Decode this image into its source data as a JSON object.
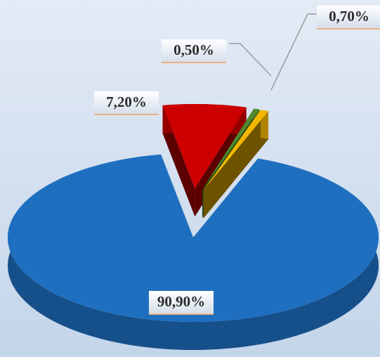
{
  "chart_data": {
    "type": "pie3d",
    "categories": [
      null,
      null,
      null,
      null
    ],
    "values": [
      7.2,
      0.5,
      0.7,
      90.9
    ],
    "value_labels": [
      "7,20%",
      "0,50%",
      "0,70%",
      "90,90%"
    ],
    "colors": [
      "#cc0000",
      "#4f8a2c",
      "#f2b800",
      "#1f6fc1"
    ],
    "exploded": [
      true,
      true,
      true,
      false
    ]
  }
}
